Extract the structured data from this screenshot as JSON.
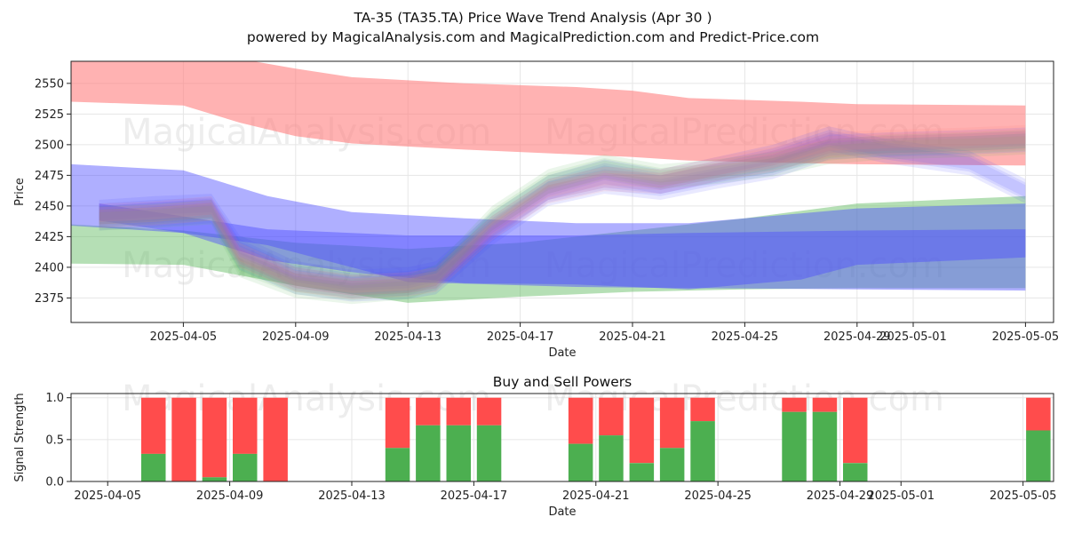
{
  "title_line1": "TA-35 (TA35.TA) Price Wave Trend Analysis (Apr 30 )",
  "title_line2": "powered by MagicalAnalysis.com and MagicalPrediction.com and Predict-Price.com",
  "watermarks": [
    "MagicalAnalysis.com",
    "MagicalPrediction.com"
  ],
  "colors": {
    "red_band": "#ff7f7f",
    "green_band": "#5cb85c",
    "blue_band": "#4d4dff",
    "buy": "#4caf50",
    "sell": "#ff4c4c"
  },
  "chart_data": [
    {
      "type": "area",
      "title": "",
      "xlabel": "Date",
      "ylabel": "Price",
      "x_ticks": [
        "2025-04-05",
        "2025-04-09",
        "2025-04-13",
        "2025-04-17",
        "2025-04-21",
        "2025-04-25",
        "2025-04-29",
        "2025-05-01",
        "2025-05-05"
      ],
      "y_ticks": [
        2375,
        2400,
        2425,
        2450,
        2475,
        2500,
        2525,
        2550
      ],
      "xlim": [
        "2025-04-01",
        "2025-05-06"
      ],
      "ylim": [
        2355,
        2568
      ],
      "grid": true,
      "bands": [
        {
          "color": "red",
          "x": [
            "2025-04-01",
            "2025-04-05",
            "2025-04-07",
            "2025-04-09",
            "2025-04-11",
            "2025-04-15",
            "2025-04-19",
            "2025-04-21",
            "2025-04-23",
            "2025-04-27",
            "2025-04-29",
            "2025-05-05"
          ],
          "upper": [
            2570,
            2570,
            2570,
            2562,
            2555,
            2550,
            2547,
            2544,
            2538,
            2535,
            2533,
            2532
          ],
          "lower": [
            2535,
            2532,
            2518,
            2507,
            2501,
            2496,
            2492,
            2490,
            2487,
            2485,
            2484,
            2483
          ]
        },
        {
          "color": "green",
          "x": [
            "2025-04-01",
            "2025-04-05",
            "2025-04-09",
            "2025-04-13",
            "2025-04-17",
            "2025-04-21",
            "2025-04-25",
            "2025-04-29",
            "2025-05-05"
          ],
          "upper": [
            2435,
            2430,
            2420,
            2415,
            2420,
            2430,
            2440,
            2452,
            2458
          ],
          "lower": [
            2403,
            2402,
            2385,
            2371,
            2376,
            2380,
            2382,
            2383,
            2383
          ]
        },
        {
          "color": "blue",
          "x": [
            "2025-04-01",
            "2025-04-05",
            "2025-04-08",
            "2025-04-11",
            "2025-04-15",
            "2025-04-19",
            "2025-04-23",
            "2025-04-27",
            "2025-04-29",
            "2025-05-05"
          ],
          "upper": [
            2484,
            2479,
            2458,
            2445,
            2440,
            2436,
            2436,
            2444,
            2448,
            2452
          ],
          "lower": [
            2434,
            2428,
            2406,
            2396,
            2387,
            2386,
            2382,
            2390,
            2402,
            2408
          ]
        },
        {
          "color": "blue",
          "x": [
            "2025-04-02",
            "2025-04-08",
            "2025-04-13",
            "2025-04-19",
            "2025-04-23",
            "2025-04-29",
            "2025-05-05"
          ],
          "upper": [
            2452,
            2431,
            2426,
            2426,
            2428,
            2430,
            2431
          ],
          "lower": [
            2438,
            2418,
            2388,
            2384,
            2383,
            2382,
            2381
          ]
        }
      ],
      "waves": [
        {
          "color": "blue",
          "x": [
            "2025-04-02",
            "2025-04-04",
            "2025-04-06",
            "2025-04-07",
            "2025-04-09",
            "2025-04-11",
            "2025-04-13",
            "2025-04-14",
            "2025-04-16",
            "2025-04-18",
            "2025-04-20",
            "2025-04-22",
            "2025-04-24",
            "2025-04-26",
            "2025-04-28",
            "2025-04-30",
            "2025-05-03",
            "2025-05-05"
          ],
          "y": [
            2445,
            2448,
            2450,
            2416,
            2395,
            2388,
            2390,
            2395,
            2435,
            2465,
            2478,
            2470,
            2480,
            2490,
            2505,
            2495,
            2485,
            2462
          ]
        },
        {
          "color": "blue",
          "x": [
            "2025-04-02",
            "2025-04-04",
            "2025-04-06",
            "2025-04-07",
            "2025-04-09",
            "2025-04-11",
            "2025-04-13",
            "2025-04-14",
            "2025-04-16",
            "2025-04-18",
            "2025-04-20",
            "2025-04-22",
            "2025-04-24",
            "2025-04-26",
            "2025-04-28",
            "2025-04-30",
            "2025-05-03",
            "2025-05-05"
          ],
          "y": [
            2440,
            2443,
            2446,
            2408,
            2388,
            2382,
            2384,
            2388,
            2428,
            2460,
            2470,
            2465,
            2474,
            2482,
            2498,
            2500,
            2502,
            2504
          ]
        },
        {
          "color": "green",
          "x": [
            "2025-04-02",
            "2025-04-04",
            "2025-04-06",
            "2025-04-07",
            "2025-04-09",
            "2025-04-11",
            "2025-04-13",
            "2025-04-14",
            "2025-04-16",
            "2025-04-18",
            "2025-04-20",
            "2025-04-22",
            "2025-04-24",
            "2025-04-26",
            "2025-04-28",
            "2025-04-30",
            "2025-05-03",
            "2025-05-05"
          ],
          "y": [
            2440,
            2442,
            2445,
            2402,
            2385,
            2380,
            2384,
            2392,
            2440,
            2470,
            2482,
            2474,
            2478,
            2484,
            2494,
            2498,
            2500,
            2502
          ]
        },
        {
          "color": "red",
          "x": [
            "2025-04-02",
            "2025-04-04",
            "2025-04-06",
            "2025-04-07",
            "2025-04-09",
            "2025-04-11",
            "2025-04-13",
            "2025-04-14",
            "2025-04-16",
            "2025-04-18",
            "2025-04-20",
            "2025-04-22",
            "2025-04-24",
            "2025-04-26",
            "2025-04-28",
            "2025-04-30",
            "2025-05-03",
            "2025-05-05"
          ],
          "y": [
            2442,
            2444,
            2448,
            2410,
            2390,
            2384,
            2386,
            2390,
            2432,
            2462,
            2472,
            2470,
            2480,
            2488,
            2500,
            2502,
            2504,
            2506
          ]
        }
      ]
    },
    {
      "type": "bar",
      "title": "Buy and Sell Powers",
      "xlabel": "Date",
      "ylabel": "Signal Strength",
      "x_ticks": [
        "2025-04-05",
        "2025-04-09",
        "2025-04-13",
        "2025-04-17",
        "2025-04-21",
        "2025-04-25",
        "2025-04-29",
        "2025-05-01",
        "2025-05-05"
      ],
      "y_ticks": [
        "0.0",
        "0.5",
        "1.0"
      ],
      "xlim": [
        "2025-04-05",
        "2025-05-06"
      ],
      "ylim": [
        0,
        1.05
      ],
      "grid": true,
      "series": [
        {
          "name": "Buy",
          "color": "green"
        },
        {
          "name": "Sell",
          "color": "red"
        }
      ],
      "bars": [
        {
          "date": "2025-04-07",
          "buy": 0.33
        },
        {
          "date": "2025-04-08",
          "buy": 0.0
        },
        {
          "date": "2025-04-09",
          "buy": 0.05
        },
        {
          "date": "2025-04-10",
          "buy": 0.33
        },
        {
          "date": "2025-04-11",
          "buy": 0.0
        },
        {
          "date": "2025-04-15",
          "buy": 0.4
        },
        {
          "date": "2025-04-16",
          "buy": 0.67
        },
        {
          "date": "2025-04-17",
          "buy": 0.67
        },
        {
          "date": "2025-04-18",
          "buy": 0.67
        },
        {
          "date": "2025-04-21",
          "buy": 0.45
        },
        {
          "date": "2025-04-22",
          "buy": 0.55
        },
        {
          "date": "2025-04-23",
          "buy": 0.22
        },
        {
          "date": "2025-04-24",
          "buy": 0.4
        },
        {
          "date": "2025-04-25",
          "buy": 0.72
        },
        {
          "date": "2025-04-28",
          "buy": 0.83
        },
        {
          "date": "2025-04-29",
          "buy": 0.83
        },
        {
          "date": "2025-04-30",
          "buy": 0.22
        },
        {
          "date": "2025-05-06",
          "buy": 0.61
        }
      ]
    }
  ]
}
